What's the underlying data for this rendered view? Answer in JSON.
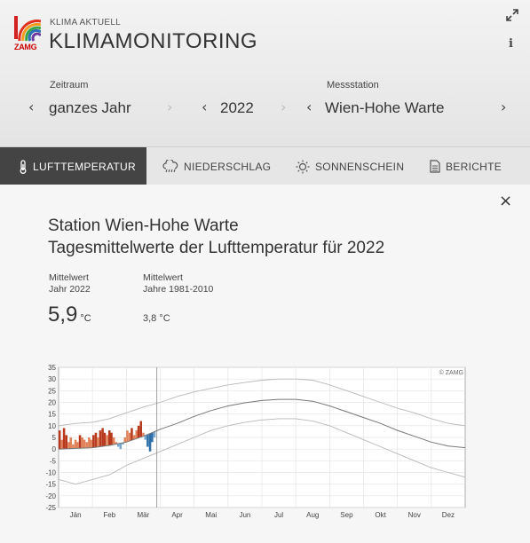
{
  "header": {
    "subtitle": "KLIMA AKTUELL",
    "title": "KLIMAMONITORING",
    "logo_text": "ZAMG",
    "info_label": "i"
  },
  "selectors": {
    "period": {
      "label": "Zeitraum",
      "value": "ganzes Jahr"
    },
    "year": {
      "value": "2022"
    },
    "station": {
      "label": "Messstation",
      "value": "Wien-Hohe Warte"
    }
  },
  "tabs": [
    {
      "label": "LUFTTEMPERATUR",
      "icon": "thermometer-icon",
      "active": true
    },
    {
      "label": "NIEDERSCHLAG",
      "icon": "rain-cloud-icon",
      "active": false
    },
    {
      "label": "SONNENSCHEIN",
      "icon": "sun-icon",
      "active": false
    },
    {
      "label": "BERICHTE",
      "icon": "document-icon",
      "active": false
    }
  ],
  "panel": {
    "title_line1": "Station Wien-Hohe Warte",
    "title_line2": "Tagesmittelwerte der Lufttemperatur für 2022",
    "stat1_label_line1": "Mittelwert",
    "stat1_label_line2": "Jahr 2022",
    "stat1_value": "5,9",
    "stat1_unit": "°C",
    "stat2_label_line1": "Mittelwert",
    "stat2_label_line2": "Jahre 1981-2010",
    "stat2_value": "3,8 °C",
    "close_label": "×"
  },
  "chart_data": {
    "type": "line",
    "watermark": "© ZAMG",
    "ylim": [
      -25,
      35
    ],
    "y_ticks": [
      35,
      30,
      25,
      20,
      15,
      10,
      5,
      0,
      -5,
      -10,
      -15,
      -20,
      -25
    ],
    "x_labels": [
      "Jän",
      "Feb",
      "Mär",
      "Apr",
      "Mai",
      "Jun",
      "Jul",
      "Aug",
      "Sep",
      "Okt",
      "Nov",
      "Dez"
    ],
    "current_day_marker_month": 2.9,
    "climate_mean": [
      [
        0,
        0
      ],
      [
        0.5,
        0.3
      ],
      [
        1,
        0.6
      ],
      [
        1.5,
        1.6
      ],
      [
        2,
        3
      ],
      [
        2.5,
        5.5
      ],
      [
        3,
        8.5
      ],
      [
        3.5,
        11
      ],
      [
        4,
        14
      ],
      [
        4.5,
        16.5
      ],
      [
        5,
        18.5
      ],
      [
        5.5,
        19.8
      ],
      [
        6,
        20.8
      ],
      [
        6.5,
        21.3
      ],
      [
        7,
        21.3
      ],
      [
        7.5,
        20.5
      ],
      [
        8,
        18.5
      ],
      [
        8.5,
        16
      ],
      [
        9,
        13.5
      ],
      [
        9.5,
        11
      ],
      [
        10,
        8
      ],
      [
        10.5,
        5.5
      ],
      [
        11,
        3
      ],
      [
        11.5,
        1.3
      ],
      [
        12,
        0.6
      ]
    ],
    "max_envelope": [
      [
        0,
        10
      ],
      [
        0.5,
        11
      ],
      [
        1,
        11.5
      ],
      [
        1.5,
        13
      ],
      [
        2,
        15.5
      ],
      [
        2.5,
        18
      ],
      [
        3,
        20
      ],
      [
        3.5,
        22.5
      ],
      [
        4,
        24.5
      ],
      [
        4.5,
        26
      ],
      [
        5,
        27.5
      ],
      [
        5.5,
        28.5
      ],
      [
        6,
        29.5
      ],
      [
        6.5,
        30
      ],
      [
        7,
        30
      ],
      [
        7.5,
        29.5
      ],
      [
        8,
        27.5
      ],
      [
        8.5,
        25
      ],
      [
        9,
        22.5
      ],
      [
        9.5,
        20
      ],
      [
        10,
        17.5
      ],
      [
        10.5,
        15.5
      ],
      [
        11,
        13
      ],
      [
        11.5,
        11
      ],
      [
        12,
        10
      ]
    ],
    "min_envelope": [
      [
        0,
        -13
      ],
      [
        0.5,
        -15
      ],
      [
        1,
        -13
      ],
      [
        1.5,
        -11
      ],
      [
        2,
        -7
      ],
      [
        2.5,
        -4
      ],
      [
        3,
        -1
      ],
      [
        3.5,
        2
      ],
      [
        4,
        5
      ],
      [
        4.5,
        8
      ],
      [
        5,
        10
      ],
      [
        5.5,
        11.5
      ],
      [
        6,
        12.5
      ],
      [
        6.5,
        13
      ],
      [
        7,
        13
      ],
      [
        7.5,
        12
      ],
      [
        8,
        10
      ],
      [
        8.5,
        7
      ],
      [
        9,
        4
      ],
      [
        9.5,
        1
      ],
      [
        10,
        -2
      ],
      [
        10.5,
        -5
      ],
      [
        11,
        -8
      ],
      [
        11.5,
        -10
      ],
      [
        12,
        -12
      ]
    ],
    "daily_2022": [
      [
        0.03,
        8
      ],
      [
        0.1,
        4
      ],
      [
        0.16,
        9
      ],
      [
        0.23,
        6
      ],
      [
        0.3,
        3
      ],
      [
        0.36,
        5
      ],
      [
        0.43,
        2
      ],
      [
        0.5,
        4
      ],
      [
        0.56,
        3
      ],
      [
        0.63,
        6
      ],
      [
        0.7,
        5
      ],
      [
        0.76,
        4
      ],
      [
        0.83,
        3
      ],
      [
        0.9,
        5
      ],
      [
        0.96,
        4
      ],
      [
        1.03,
        6
      ],
      [
        1.1,
        7
      ],
      [
        1.16,
        5
      ],
      [
        1.23,
        8
      ],
      [
        1.3,
        9
      ],
      [
        1.36,
        7
      ],
      [
        1.43,
        6
      ],
      [
        1.5,
        8
      ],
      [
        1.56,
        7
      ],
      [
        1.63,
        5
      ],
      [
        1.7,
        3
      ],
      [
        1.76,
        1
      ],
      [
        1.83,
        0
      ],
      [
        1.9,
        2
      ],
      [
        1.96,
        5
      ],
      [
        2.03,
        8
      ],
      [
        2.1,
        7
      ],
      [
        2.16,
        9
      ],
      [
        2.23,
        6
      ],
      [
        2.3,
        8
      ],
      [
        2.36,
        10
      ],
      [
        2.43,
        12
      ],
      [
        2.5,
        7
      ],
      [
        2.56,
        4
      ],
      [
        2.63,
        1
      ],
      [
        2.7,
        -1
      ],
      [
        2.76,
        3
      ],
      [
        2.83,
        5
      ],
      [
        2.9,
        8
      ]
    ]
  }
}
